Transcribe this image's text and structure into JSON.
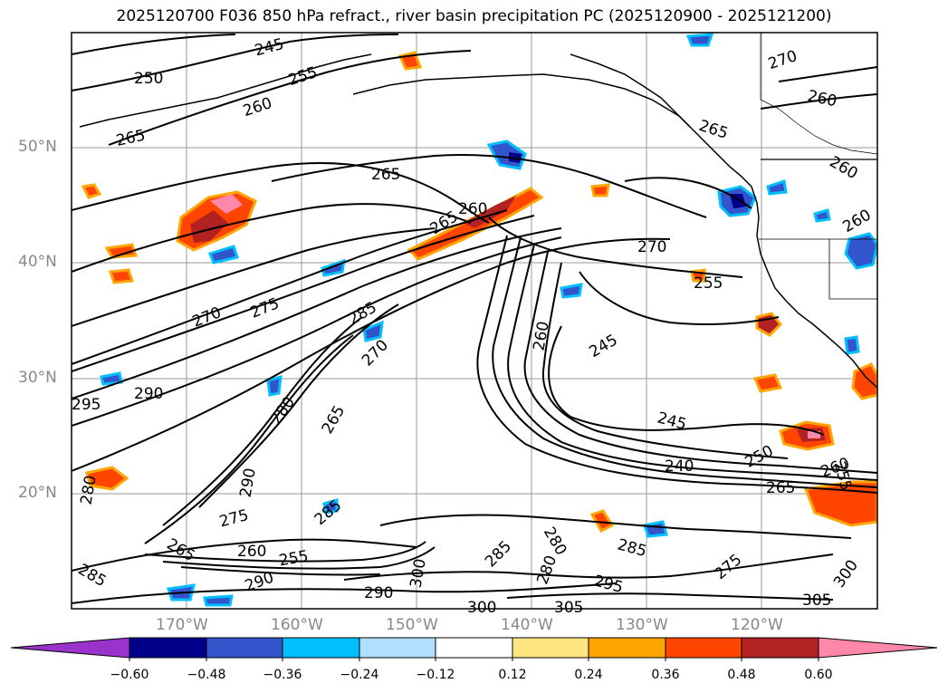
{
  "title": "2025120700 F036 850 hPa refract., river basin precipitation PC (2025120900 - 2025121200)",
  "map": {
    "lat_labels": [
      "50°N",
      "40°N",
      "30°N",
      "20°N"
    ],
    "lon_labels": [
      "170°W",
      "160°W",
      "150°W",
      "140°W",
      "130°W",
      "120°W"
    ],
    "contour_labels": [
      "245",
      "250",
      "255",
      "260",
      "265",
      "250",
      "260",
      "265",
      "260",
      "265",
      "270",
      "260",
      "270",
      "265",
      "260",
      "270",
      "255",
      "270",
      "275",
      "285",
      "270",
      "260",
      "245",
      "265",
      "290",
      "295",
      "280",
      "285",
      "290",
      "280",
      "275",
      "260",
      "255",
      "265",
      "245",
      "240",
      "250",
      "260",
      "255",
      "265",
      "285",
      "295",
      "290",
      "280",
      "300",
      "290",
      "280",
      "285",
      "300",
      "305",
      "275",
      "300",
      "305",
      "285"
    ]
  },
  "colorbar": {
    "ticks": [
      "−0.60",
      "−0.48",
      "−0.36",
      "−0.24",
      "−0.12",
      "0.12",
      "0.24",
      "0.36",
      "0.48",
      "0.60"
    ],
    "colors": [
      "#9933cc",
      "#00008b",
      "#3355cc",
      "#00bfff",
      "#b0e0ff",
      "#ffffff",
      "#ffe680",
      "#ffa500",
      "#ff4500",
      "#b22222",
      "#ff88aa"
    ]
  }
}
